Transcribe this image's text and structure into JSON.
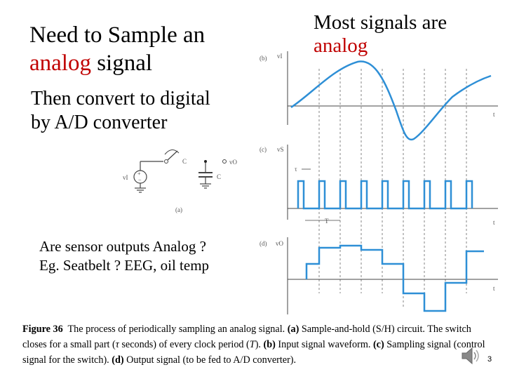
{
  "title": {
    "line1": "Need to Sample an",
    "line2_red": "analog",
    "line2_rest": " signal"
  },
  "right_heading": {
    "line1": "Most signals are",
    "line2_red": "analog"
  },
  "subtitle": {
    "line1": "Then convert to digital",
    "line2": "by A/D converter"
  },
  "question": {
    "line1": "Are sensor outputs Analog ?",
    "line2": "Eg. Seatbelt ? EEG, oil temp"
  },
  "caption": {
    "fig": "Figure 36",
    "t1": "The process of periodically sampling an analog signal. ",
    "a": "(a)",
    "t2": " Sample-and-hold (S/H) circuit. The switch closes for a small part (",
    "tau": "τ",
    "t3": " seconds) of every clock period (",
    "T": "T",
    "t4": "). ",
    "b": "(b)",
    "t5": " Input signal waveform. ",
    "c": "(c)",
    "t6": " Sampling signal (control signal for the switch). ",
    "d": "(d)",
    "t7": " Output signal (to be fed to A/D converter)."
  },
  "figure": {
    "label_b": "(b)",
    "label_c": "(c)",
    "label_d": "(d)",
    "label_a": "(a)",
    "vi": "vI",
    "vs": "vS",
    "vo_d": "vO",
    "vo_a": "vO",
    "c_cap": "C",
    "c_sw": "C",
    "t_axis": "t",
    "tau_mark": "τ",
    "T_mark": "T"
  },
  "icons": {
    "speaker": "speaker-icon"
  },
  "page_number": "3"
}
